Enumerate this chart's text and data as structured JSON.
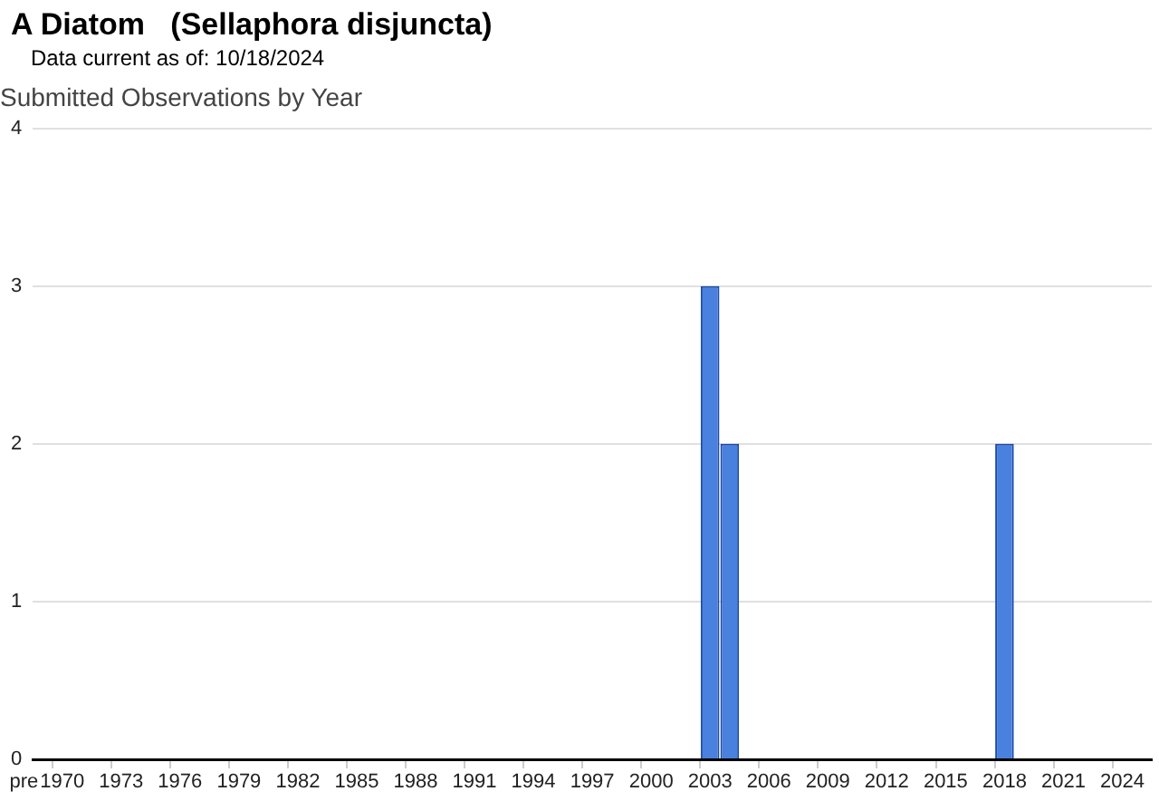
{
  "chart_data": {
    "type": "bar",
    "title": "A Diatom   (Sellaphora disjuncta)",
    "subtitle": "Data current as of: 10/18/2024",
    "ylabel": "Submitted Observations by Year",
    "categories": [
      "pre",
      "1970",
      null,
      null,
      "1973",
      null,
      null,
      "1976",
      null,
      null,
      "1979",
      null,
      null,
      "1982",
      null,
      null,
      "1985",
      null,
      null,
      "1988",
      null,
      null,
      "1991",
      null,
      null,
      "1994",
      null,
      null,
      "1997",
      null,
      null,
      "2000",
      null,
      null,
      "2003",
      null,
      null,
      "2006",
      null,
      null,
      "2009",
      null,
      null,
      "2012",
      null,
      null,
      "2015",
      null,
      null,
      "2018",
      null,
      null,
      "2021",
      null,
      null,
      "2024",
      null
    ],
    "values": [
      null,
      null,
      null,
      null,
      null,
      null,
      null,
      null,
      null,
      null,
      null,
      null,
      null,
      null,
      null,
      null,
      null,
      null,
      null,
      null,
      null,
      null,
      null,
      null,
      null,
      null,
      null,
      null,
      null,
      null,
      null,
      null,
      null,
      null,
      3,
      2,
      null,
      null,
      null,
      null,
      null,
      null,
      null,
      null,
      null,
      null,
      null,
      null,
      null,
      2,
      null,
      null,
      null,
      null,
      null,
      null,
      null
    ],
    "color": "#4a80de",
    "ylim": [
      0,
      4
    ],
    "yticks": [
      0,
      1,
      2,
      3,
      4
    ],
    "grid": "y",
    "legend": false
  }
}
